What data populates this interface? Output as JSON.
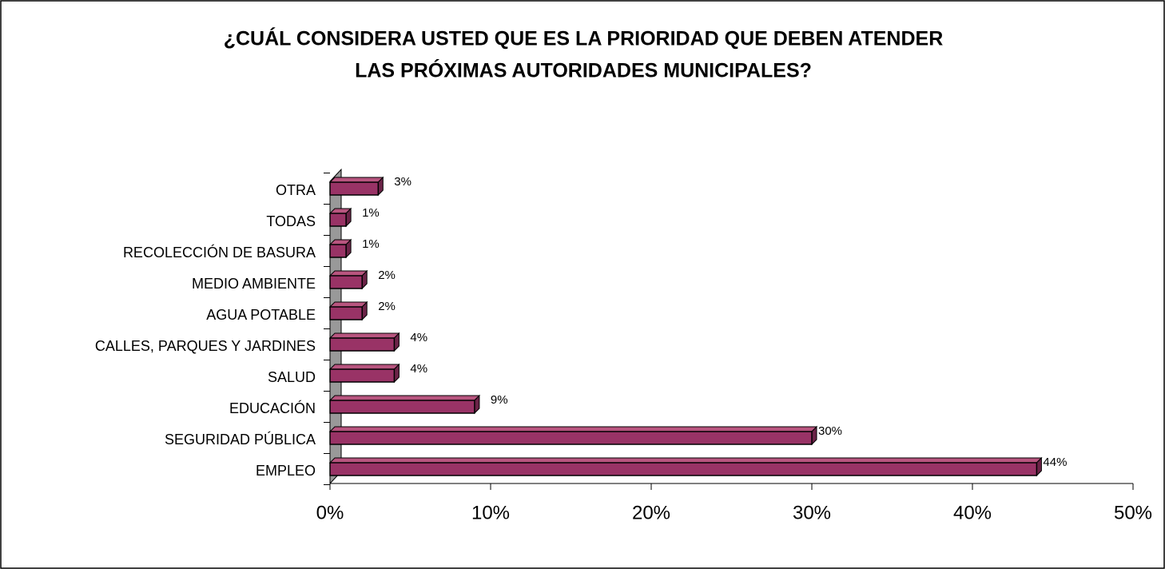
{
  "chart_data": {
    "type": "bar3d-horizontal",
    "title": [
      "¿CUÁL CONSIDERA USTED QUE ES LA PRIORIDAD QUE DEBEN ATENDER",
      "LAS PRÓXIMAS AUTORIDADES MUNICIPALES?"
    ],
    "categories": [
      "EMPLEO",
      "SEGURIDAD PÚBLICA",
      "EDUCACIÓN",
      "SALUD",
      "CALLES, PARQUES Y JARDINES",
      "AGUA POTABLE",
      "MEDIO AMBIENTE",
      "RECOLECCIÓN DE BASURA",
      "TODAS",
      "OTRA"
    ],
    "values": [
      44,
      30,
      9,
      4,
      4,
      2,
      2,
      1,
      1,
      3
    ],
    "value_labels": [
      "44%",
      "30%",
      "9%",
      "4%",
      "4%",
      "2%",
      "2%",
      "1%",
      "1%",
      "3%"
    ],
    "color": "#993366",
    "xlim": [
      0,
      50
    ],
    "xticks": [
      {
        "value": 0,
        "label": "0%"
      },
      {
        "value": 10,
        "label": "10%"
      },
      {
        "value": 20,
        "label": "20%"
      },
      {
        "value": 30,
        "label": "30%"
      },
      {
        "value": 40,
        "label": "40%"
      },
      {
        "value": 50,
        "label": "50%"
      }
    ],
    "grid": false
  }
}
